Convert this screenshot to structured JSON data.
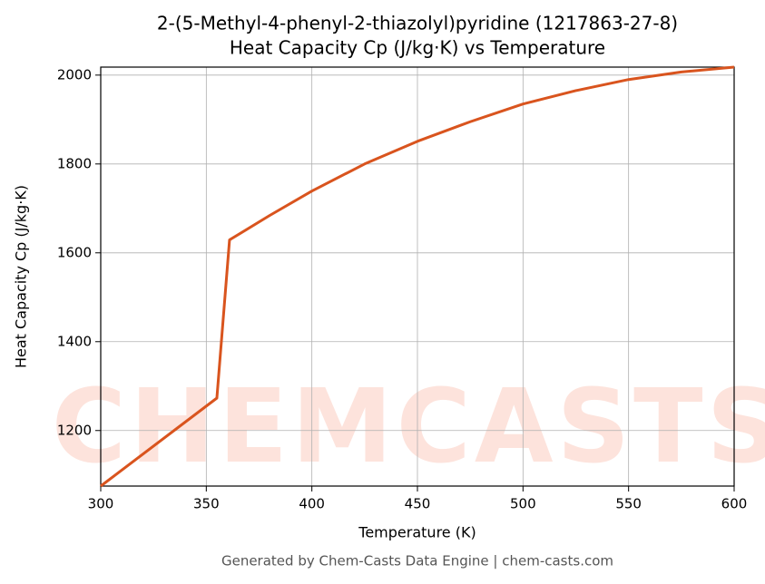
{
  "chart_data": {
    "type": "line",
    "title": "2-(5-Methyl-4-phenyl-2-thiazolyl)pyridine (1217863-27-8)",
    "subtitle": "Heat Capacity Cp (J/kg·K) vs Temperature",
    "x_label": "Temperature (K)",
    "y_label": "Heat Capacity Cp (J/kg·K)",
    "footer": "Generated by Chem-Casts Data Engine | chem-casts.com",
    "watermark": "CHEMCASTS",
    "xlim": [
      300,
      600
    ],
    "xticks": [
      300,
      350,
      400,
      450,
      500,
      550,
      600
    ],
    "ylim": [
      1075,
      2018
    ],
    "yticks": [
      1200,
      1400,
      1600,
      1800,
      2000
    ],
    "grid": true,
    "series": [
      {
        "name": "Cp",
        "color": "#d9541e",
        "x": [
          300,
          355,
          361,
          380,
          400,
          425,
          450,
          475,
          500,
          525,
          550,
          575,
          600
        ],
        "values": [
          1075,
          1273,
          1629,
          1684,
          1739,
          1800,
          1851,
          1895,
          1935,
          1965,
          1990,
          2007,
          2018
        ]
      }
    ]
  }
}
